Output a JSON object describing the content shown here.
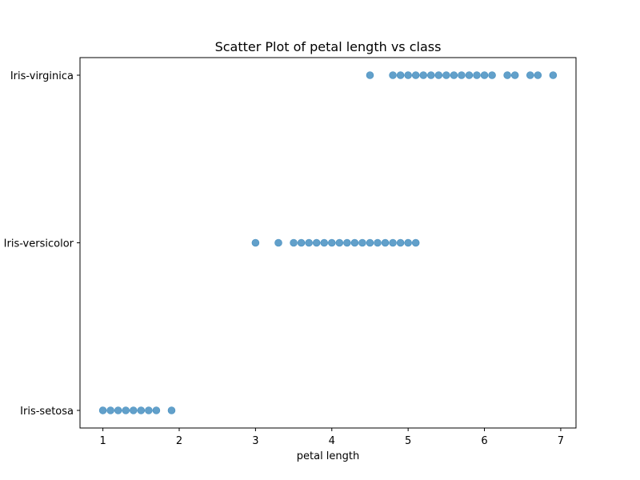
{
  "chart_data": {
    "type": "scatter",
    "title": "Scatter Plot of petal length vs class",
    "xlabel": "petal length",
    "ylabel": "",
    "xlim": [
      0.7,
      7.2
    ],
    "x_ticks": [
      1,
      2,
      3,
      4,
      5,
      6,
      7
    ],
    "categories": [
      "Iris-setosa",
      "Iris-versicolor",
      "Iris-virginica"
    ],
    "grid": false,
    "color": "#1f77b4",
    "series": [
      {
        "category": "Iris-setosa",
        "x": [
          1.0,
          1.1,
          1.2,
          1.3,
          1.4,
          1.5,
          1.6,
          1.7,
          1.9
        ]
      },
      {
        "category": "Iris-versicolor",
        "x": [
          3.0,
          3.3,
          3.5,
          3.6,
          3.7,
          3.8,
          3.9,
          4.0,
          4.1,
          4.2,
          4.3,
          4.4,
          4.5,
          4.6,
          4.7,
          4.8,
          4.9,
          5.0,
          5.1
        ]
      },
      {
        "category": "Iris-virginica",
        "x": [
          4.5,
          4.8,
          4.9,
          5.0,
          5.1,
          5.2,
          5.3,
          5.4,
          5.5,
          5.6,
          5.7,
          5.8,
          5.9,
          6.0,
          6.1,
          6.3,
          6.4,
          6.6,
          6.7,
          6.9
        ]
      }
    ]
  }
}
